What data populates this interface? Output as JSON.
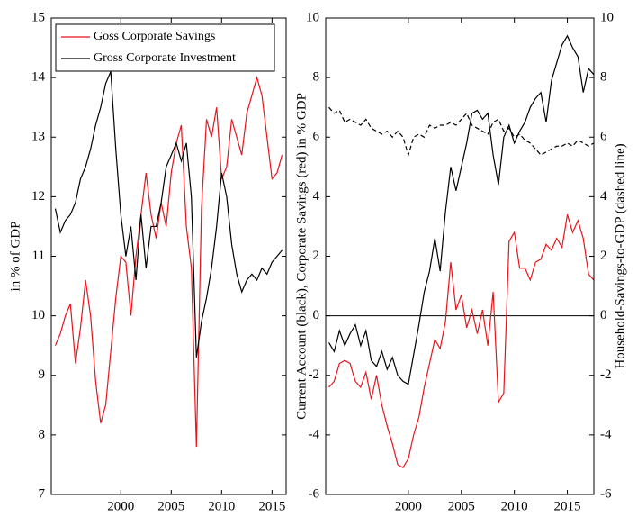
{
  "chart_data": [
    {
      "type": "line",
      "legend": "upper left",
      "ylabel": "in % of GDP",
      "xlim": [
        1993.1,
        2016.4
      ],
      "xticks": [
        2000,
        2005,
        2010,
        2015
      ],
      "ylim": [
        7,
        15
      ],
      "yticks": [
        7,
        8,
        9,
        10,
        11,
        12,
        13,
        14,
        15
      ],
      "x": [
        1993.5,
        1994,
        1994.5,
        1995,
        1995.5,
        1996,
        1996.5,
        1997,
        1997.5,
        1998,
        1998.5,
        1999,
        1999.5,
        2000,
        2000.5,
        2001,
        2001.5,
        2002,
        2002.5,
        2003,
        2003.5,
        2004,
        2004.5,
        2005,
        2005.5,
        2006,
        2006.5,
        2007,
        2007.5,
        2008,
        2008.5,
        2009,
        2009.5,
        2010,
        2010.5,
        2011,
        2011.5,
        2012,
        2012.5,
        2013,
        2013.5,
        2014,
        2014.5,
        2015,
        2015.5,
        2016
      ],
      "series": [
        {
          "name": "Goss Corporate Savings",
          "color": "#e8141b",
          "values": [
            9.5,
            9.7,
            10.0,
            10.2,
            9.2,
            9.8,
            10.6,
            10.0,
            8.9,
            8.2,
            8.5,
            9.4,
            10.3,
            11.0,
            10.9,
            10.0,
            11.0,
            11.7,
            12.4,
            11.7,
            11.3,
            11.9,
            11.5,
            12.4,
            12.9,
            13.2,
            11.5,
            10.8,
            7.8,
            11.8,
            13.3,
            13.0,
            13.5,
            12.3,
            12.5,
            13.3,
            13.0,
            12.7,
            13.4,
            13.7,
            14.0,
            13.7,
            13.0,
            12.3,
            12.4,
            12.7
          ]
        },
        {
          "name": "Gross Corporate Investment",
          "color": "#000000",
          "values": [
            11.8,
            11.4,
            11.6,
            11.7,
            11.9,
            12.3,
            12.5,
            12.8,
            13.2,
            13.5,
            13.9,
            14.1,
            12.8,
            11.7,
            11.0,
            11.5,
            10.6,
            11.7,
            10.8,
            11.5,
            11.5,
            11.9,
            12.5,
            12.7,
            12.9,
            12.6,
            12.9,
            12.0,
            9.3,
            9.9,
            10.3,
            10.8,
            11.5,
            12.4,
            12.0,
            11.2,
            10.7,
            10.4,
            10.6,
            10.7,
            10.6,
            10.8,
            10.7,
            10.9,
            11.0,
            11.1
          ]
        }
      ]
    },
    {
      "type": "line",
      "ylabel": "Current Account (black), Corporate Savings (red) in % GDP",
      "y2label": "Household-Savings-to-GDP (dashed line)",
      "xlim": [
        1992.2,
        2017.5
      ],
      "xticks": [
        2000,
        2005,
        2010,
        2015
      ],
      "ylim": [
        -6,
        10
      ],
      "yticks": [
        -6,
        -4,
        -2,
        0,
        2,
        4,
        6,
        8,
        10
      ],
      "y2lim": [
        -6,
        10
      ],
      "y2ticks": [
        -6,
        -4,
        -2,
        0,
        2,
        4,
        6,
        8,
        10
      ],
      "hline": 0,
      "x": [
        1992.5,
        1993,
        1993.5,
        1994,
        1994.5,
        1995,
        1995.5,
        1996,
        1996.5,
        1997,
        1997.5,
        1998,
        1998.5,
        1999,
        1999.5,
        2000,
        2000.5,
        2001,
        2001.5,
        2002,
        2002.5,
        2003,
        2003.5,
        2004,
        2004.5,
        2005,
        2005.5,
        2006,
        2006.5,
        2007,
        2007.5,
        2008,
        2008.5,
        2009,
        2009.5,
        2010,
        2010.5,
        2011,
        2011.5,
        2012,
        2012.5,
        2013,
        2013.5,
        2014,
        2014.5,
        2015,
        2015.5,
        2016,
        2016.5,
        2017,
        2017.5
      ],
      "series": [
        {
          "color": "#000000",
          "linestyle": "solid",
          "values": [
            -0.9,
            -1.2,
            -0.5,
            -1.0,
            -0.6,
            -0.3,
            -1.0,
            -0.5,
            -1.5,
            -1.7,
            -1.2,
            -1.8,
            -1.4,
            -2.0,
            -2.2,
            -2.3,
            -1.3,
            -0.3,
            0.8,
            1.5,
            2.6,
            1.5,
            3.5,
            5.0,
            4.2,
            5.0,
            5.8,
            6.8,
            6.9,
            6.6,
            6.8,
            5.4,
            4.4,
            6.0,
            6.4,
            5.8,
            6.2,
            6.5,
            7.0,
            7.3,
            7.5,
            6.5,
            7.9,
            8.5,
            9.1,
            9.4,
            9.0,
            8.7,
            7.5,
            8.3,
            8.1
          ]
        },
        {
          "color": "#e8141b",
          "linestyle": "solid",
          "values": [
            -2.4,
            -2.2,
            -1.6,
            -1.5,
            -1.6,
            -2.2,
            -2.4,
            -1.9,
            -2.8,
            -2.0,
            -3.0,
            -3.7,
            -4.3,
            -5.0,
            -5.1,
            -4.8,
            -4.0,
            -3.4,
            -2.4,
            -1.6,
            -0.8,
            -1.1,
            -0.2,
            1.8,
            0.2,
            0.7,
            -0.4,
            0.2,
            -0.6,
            0.2,
            -1.0,
            0.8,
            -2.9,
            -2.6,
            2.5,
            2.8,
            1.6,
            1.6,
            1.2,
            1.8,
            1.9,
            2.4,
            2.2,
            2.6,
            2.3,
            3.4,
            2.8,
            3.2,
            2.6,
            1.4,
            1.2
          ]
        },
        {
          "color": "#000000",
          "linestyle": "dashed",
          "axis": "y2",
          "values": [
            7.0,
            6.8,
            6.9,
            6.5,
            6.6,
            6.5,
            6.4,
            6.6,
            6.3,
            6.2,
            6.1,
            6.2,
            6.0,
            6.2,
            6.0,
            5.4,
            6.0,
            6.1,
            6.0,
            6.4,
            6.3,
            6.4,
            6.4,
            6.5,
            6.4,
            6.6,
            6.8,
            6.4,
            6.3,
            6.2,
            6.1,
            6.5,
            6.6,
            6.2,
            6.3,
            6.0,
            6.1,
            5.9,
            5.8,
            5.6,
            5.4,
            5.5,
            5.6,
            5.7,
            5.7,
            5.8,
            5.7,
            5.9,
            5.8,
            5.7,
            5.8
          ]
        }
      ]
    }
  ]
}
